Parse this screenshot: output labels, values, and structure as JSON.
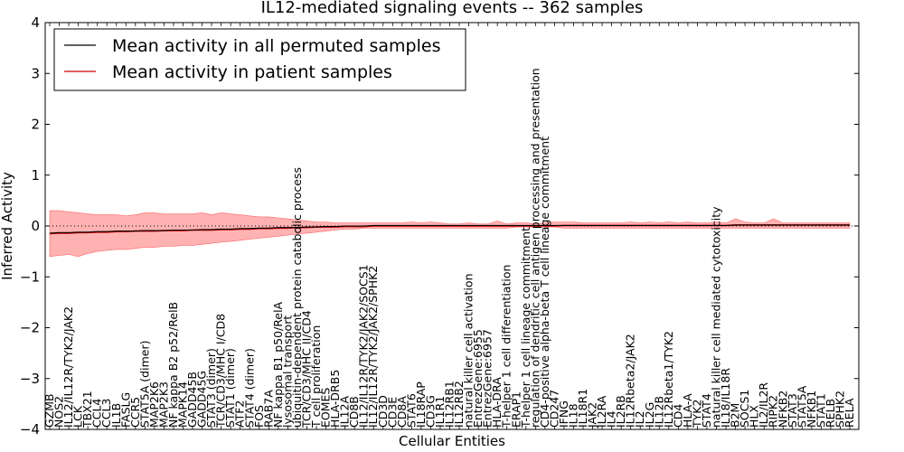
{
  "chart_data": {
    "type": "line",
    "title": "IL12-mediated signaling events -- 362 samples",
    "xlabel": "Cellular Entities",
    "ylabel": "Inferred Activity",
    "ylim": [
      -4,
      4
    ],
    "yticks": [
      -4,
      -3,
      -2,
      -1,
      0,
      1,
      2,
      3,
      4
    ],
    "legend": {
      "placement": "top-left",
      "entries": [
        {
          "label": "Mean activity in all permuted samples",
          "color": "#000000"
        },
        {
          "label": "Mean activity in patient samples",
          "color": "#cc0000"
        }
      ]
    },
    "categories": [
      "GZMB",
      "NOS2",
      "IL12/IL12R/TYK2/JAK2",
      "LCK",
      "TBX21",
      "CCL4",
      "CCL3",
      "IL1B",
      "FASLG",
      "CCR5",
      "STAT5A (dimer)",
      "MAP2K6",
      "MAP2K3",
      "NF kappa B2 p52/RelB",
      "MAPK14",
      "GADD45B",
      "GADD45G",
      "STAT3 (dimer)",
      "TCR/CD3/MHC I/CD8",
      "STAT1 (dimer)",
      "ATF2",
      "STAT4 (dimer)",
      "FOS",
      "RAB7A",
      "NF kappa B1 p50/RelA",
      "lysosomal transport",
      "ubiquitin-dependent protein catabolic process",
      "TCR/CD3/MHC II/CD4",
      "T cell proliferation",
      "EOMES",
      "HLA-DRB5",
      "IL12A",
      "CD8B",
      "IL12/IL12R/TYK2/JAK2/SOCS1",
      "IL12/IL12R/TYK2/JAK2/SPHK2",
      "CD3D",
      "CD3E",
      "CD8A",
      "STAT6",
      "IL18RAP",
      "CD3G",
      "IL1R1",
      "IL12RB1",
      "IL12RB2",
      "natural killer cell activation",
      "EntrezGene:6955",
      "EntrezGene:6957",
      "HLA-DRA",
      "T-helper 1 cell differentiation",
      "ERAP1",
      "T-helper 1 cell lineage commitment",
      "regulation of dendritic cell antigen processing and presentation",
      "CD4-positive alpha-beta T cell lineage commitment",
      "CD247",
      "IFNG",
      "IL18",
      "IL18R1",
      "JAK2",
      "IL2RA",
      "IL4",
      "IL2RB",
      "IL12Rbeta2/JAK2",
      "IL2",
      "IL2G",
      "IL12B",
      "IL12Rbeta1/TYK2",
      "CD4",
      "HLA-A",
      "TYK2",
      "STAT4",
      "natural killer cell mediated cytotoxicity",
      "IL18/IL18R",
      "B2M",
      "SOCS1",
      "HLX",
      "IL2/IL2R",
      "RIPK2",
      "NFKB2",
      "STAT3",
      "STAT5A",
      "NFKB1",
      "STAT1",
      "RELB",
      "SPHK2",
      "RELA"
    ],
    "series": [
      {
        "name": "Mean activity in patient samples",
        "color": "#cc0000",
        "values": [
          -0.15,
          -0.14,
          -0.14,
          -0.13,
          -0.13,
          -0.12,
          -0.12,
          -0.11,
          -0.11,
          -0.1,
          -0.1,
          -0.1,
          -0.09,
          -0.09,
          -0.09,
          -0.08,
          -0.08,
          -0.08,
          -0.07,
          -0.07,
          -0.06,
          -0.06,
          -0.05,
          -0.05,
          -0.04,
          -0.04,
          -0.03,
          -0.03,
          -0.02,
          -0.02,
          -0.02,
          -0.01,
          -0.01,
          -0.01,
          0.0,
          0.0,
          0.0,
          0.0,
          0.0,
          0.0,
          0.0,
          0.0,
          0.0,
          0.0,
          0.0,
          0.0,
          0.0,
          0.0,
          0.0,
          0.0,
          0.0,
          0.0,
          0.0,
          0.0,
          0.01,
          0.01,
          0.01,
          0.01,
          0.01,
          0.01,
          0.01,
          0.01,
          0.01,
          0.01,
          0.01,
          0.01,
          0.01,
          0.01,
          0.01,
          0.01,
          0.01,
          0.01,
          0.02,
          0.02,
          0.02,
          0.02,
          0.02,
          0.02,
          0.02,
          0.02,
          0.02,
          0.02,
          0.02,
          0.02,
          0.02
        ]
      },
      {
        "name": "Mean activity in all permuted samples",
        "color": "#000000",
        "values": [
          -0.14,
          -0.13,
          -0.13,
          -0.12,
          -0.12,
          -0.11,
          -0.11,
          -0.1,
          -0.1,
          -0.1,
          -0.09,
          -0.09,
          -0.09,
          -0.08,
          -0.08,
          -0.08,
          -0.07,
          -0.07,
          -0.06,
          -0.06,
          -0.05,
          -0.05,
          -0.04,
          -0.04,
          -0.03,
          -0.03,
          -0.03,
          -0.02,
          -0.02,
          -0.01,
          -0.01,
          0.0,
          0.0,
          0.0,
          0.01,
          0.01,
          0.01,
          0.01,
          0.01,
          0.01,
          0.01,
          0.01,
          0.01,
          0.01,
          0.01,
          0.01,
          0.01,
          0.01,
          0.01,
          0.01,
          0.01,
          0.01,
          0.01,
          0.01,
          0.01,
          0.01,
          0.01,
          0.01,
          0.01,
          0.01,
          0.01,
          0.01,
          0.01,
          0.01,
          0.01,
          0.01,
          0.01,
          0.01,
          0.01,
          0.01,
          0.01,
          0.01,
          0.02,
          0.02,
          0.02,
          0.02,
          0.02,
          0.02,
          0.02,
          0.02,
          0.02,
          0.02,
          0.02,
          0.02,
          0.02
        ]
      }
    ],
    "band_upper": [
      0.3,
      0.3,
      0.28,
      0.26,
      0.24,
      0.22,
      0.22,
      0.22,
      0.2,
      0.22,
      0.26,
      0.26,
      0.24,
      0.24,
      0.24,
      0.24,
      0.26,
      0.22,
      0.26,
      0.24,
      0.22,
      0.2,
      0.18,
      0.18,
      0.16,
      0.14,
      0.12,
      0.1,
      0.08,
      0.08,
      0.06,
      0.06,
      0.06,
      0.06,
      0.06,
      0.06,
      0.06,
      0.06,
      0.08,
      0.06,
      0.08,
      0.06,
      0.04,
      0.04,
      0.06,
      0.04,
      0.04,
      0.1,
      0.04,
      0.06,
      0.06,
      0.04,
      0.06,
      0.08,
      0.08,
      0.08,
      0.06,
      0.06,
      0.06,
      0.06,
      0.06,
      0.08,
      0.06,
      0.08,
      0.06,
      0.08,
      0.06,
      0.08,
      0.06,
      0.06,
      0.08,
      0.06,
      0.14,
      0.08,
      0.06,
      0.06,
      0.14,
      0.06,
      0.06,
      0.06,
      0.06,
      0.06,
      0.06,
      0.06,
      0.06
    ],
    "band_lower": [
      -0.6,
      -0.58,
      -0.56,
      -0.6,
      -0.54,
      -0.5,
      -0.48,
      -0.46,
      -0.46,
      -0.44,
      -0.42,
      -0.42,
      -0.4,
      -0.4,
      -0.38,
      -0.38,
      -0.36,
      -0.34,
      -0.32,
      -0.3,
      -0.28,
      -0.26,
      -0.24,
      -0.22,
      -0.2,
      -0.18,
      -0.16,
      -0.14,
      -0.12,
      -0.1,
      -0.08,
      -0.06,
      -0.06,
      -0.04,
      -0.04,
      -0.04,
      -0.04,
      -0.04,
      -0.04,
      -0.04,
      -0.04,
      -0.04,
      -0.04,
      -0.04,
      -0.04,
      -0.04,
      -0.04,
      -0.04,
      -0.04,
      -0.02,
      -0.02,
      -0.02,
      -0.02,
      -0.02,
      -0.04,
      -0.04,
      -0.04,
      -0.04,
      -0.04,
      -0.04,
      -0.04,
      -0.04,
      -0.04,
      -0.04,
      -0.04,
      -0.04,
      -0.04,
      -0.04,
      -0.04,
      -0.04,
      -0.04,
      -0.04,
      -0.04,
      -0.04,
      -0.04,
      -0.04,
      -0.04,
      -0.04,
      -0.04,
      -0.04,
      -0.04,
      -0.04,
      -0.04,
      -0.04,
      -0.04
    ],
    "reference_line": 0,
    "grid": false
  }
}
